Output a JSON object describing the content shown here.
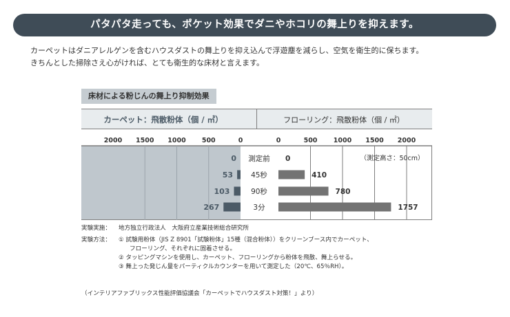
{
  "banner": {
    "text": "パタパタ走っても、ポケット効果でダニやホコリの舞上りを抑えます。"
  },
  "description": [
    "カーペットはダニアレルゲンを含むハウスダストの舞上りを抑え込んで浮遊塵を減らし、空気を衛生的に保ちます。",
    "きちんとした掃除さえ心がければ、とても衛生的な床材と言えます。"
  ],
  "chart_data": {
    "type": "bar",
    "title": "床材による粉じんの舞上り抑制効果",
    "categories": [
      "測定前",
      "45秒",
      "90秒",
      "3分"
    ],
    "series": [
      {
        "name": "カーペット：飛散粉体（個 / ㎥）",
        "values": [
          0,
          53,
          103,
          267
        ]
      },
      {
        "name": "フローリング：飛散粉体（個 / ㎥）",
        "values": [
          0,
          410,
          780,
          1757
        ]
      }
    ],
    "value_labels": {
      "carpet": [
        "0",
        "53",
        "103",
        "267"
      ],
      "flooring": [
        "0",
        "410",
        "780",
        "1757"
      ]
    },
    "carpet_ticks": [
      "2000",
      "1500",
      "1000",
      "500",
      "0"
    ],
    "flooring_ticks": [
      "0",
      "500",
      "1000",
      "1500",
      "2000"
    ],
    "xlim": [
      0,
      2000
    ],
    "annotation": "（測定高さ：50cm）",
    "colors": {
      "carpet_bar": "#4b5a66",
      "flooring_bar": "#737373",
      "carpet_bg": "#bfc7cd",
      "header_bg": "#e8ecee",
      "grid": "#7d7d7d"
    }
  },
  "notes": {
    "implementer_label": "実験実施：",
    "implementer": "地方独立行政法人　大阪府立産業技術総合研究所",
    "method_label": "実験方法：",
    "method_1a": "① 試験用粉体（JIS Z 8901「試験粉体」15種（混合粉体））をクリーンブース内でカーペット、",
    "method_1b": "フローリング、それぞれに固着させる。",
    "method_2": "② タッピングマシンを使用し、カーペット、フローリングから粉体を飛散、舞上らせる。",
    "method_3": "③ 舞上った発じん量をパーティクルカウンターを用いて測定した（20℃、65％RH）。"
  },
  "source": "（インテリアファブリックス性能評価協議会「カーペットでハウスダスト対策！」より）"
}
